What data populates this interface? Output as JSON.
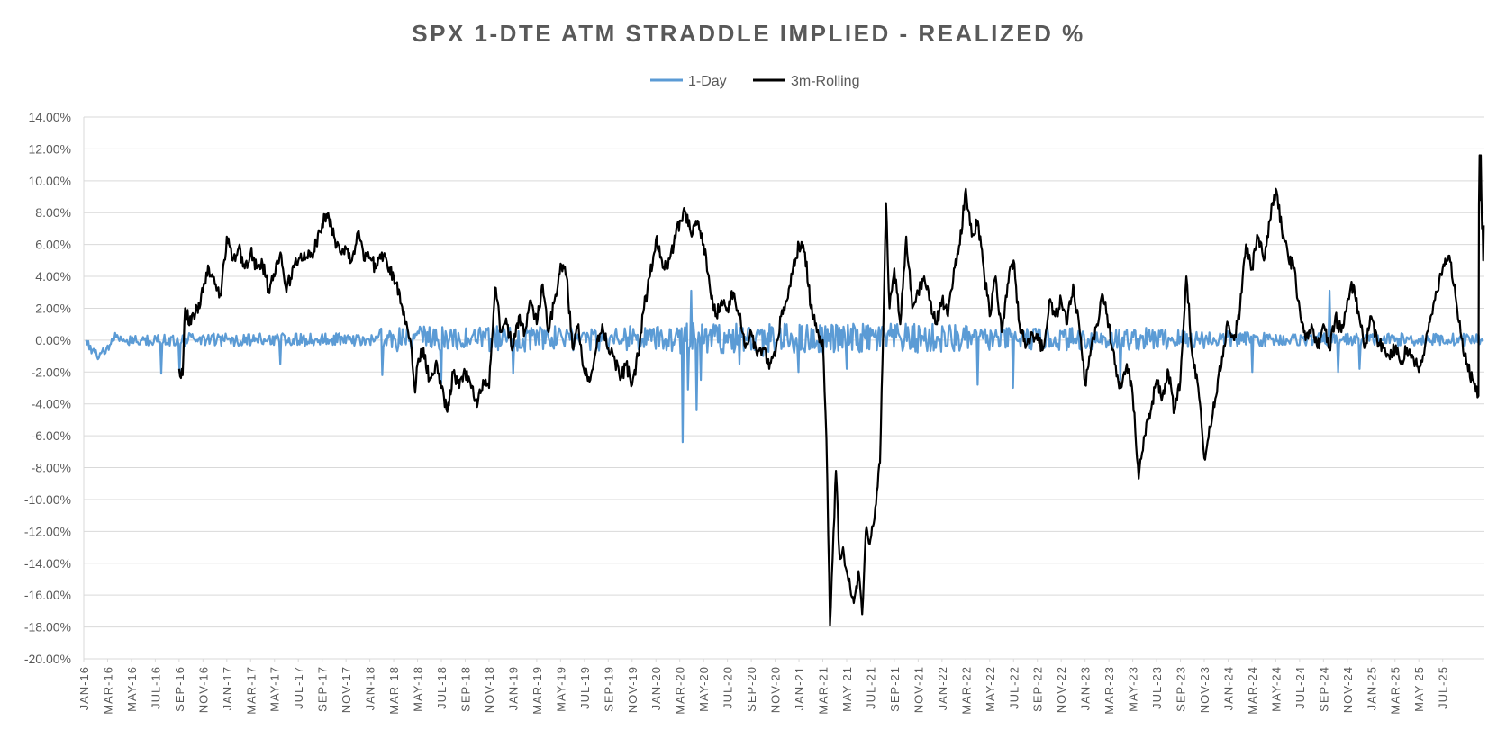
{
  "chart_data": {
    "type": "line",
    "title": "SPX 1-DTE ATM STRADDLE IMPLIED - REALIZED %",
    "xlabel": "",
    "ylabel": "",
    "ylim": [
      -20,
      14
    ],
    "y_ticks": [
      14,
      12,
      10,
      8,
      6,
      4,
      2,
      0,
      -2,
      -4,
      -6,
      -8,
      -10,
      -12,
      -14,
      -16,
      -18,
      -20
    ],
    "y_tick_labels": [
      "14.00%",
      "12.00%",
      "10.00%",
      "8.00%",
      "6.00%",
      "4.00%",
      "2.00%",
      "0.00%",
      "-2.00%",
      "-4.00%",
      "-6.00%",
      "-8.00%",
      "-10.00%",
      "-12.00%",
      "-14.00%",
      "-16.00%",
      "-18.00%",
      "-20.00%"
    ],
    "x_range_months": [
      0,
      117.5
    ],
    "x_tick_labels": [
      "JAN-16",
      "MAR-16",
      "MAY-16",
      "JUL-16",
      "SEP-16",
      "NOV-16",
      "JAN-17",
      "MAR-17",
      "MAY-17",
      "JUL-17",
      "SEP-17",
      "NOV-17",
      "JAN-18",
      "MAR-18",
      "MAY-18",
      "JUL-18",
      "SEP-18",
      "NOV-18",
      "JAN-19",
      "MAR-19",
      "MAY-19",
      "JUL-19",
      "SEP-19",
      "NOV-19",
      "JAN-20",
      "MAR-20",
      "MAY-20",
      "JUL-20",
      "SEP-20",
      "NOV-20",
      "JAN-21",
      "MAR-21",
      "MAY-21",
      "JUL-21",
      "SEP-21",
      "NOV-21",
      "JAN-22",
      "MAR-22",
      "MAY-22",
      "JUL-22",
      "SEP-22",
      "NOV-22",
      "JAN-23",
      "MAR-23",
      "MAY-23",
      "JUL-23",
      "SEP-23",
      "NOV-23",
      "JAN-24",
      "MAR-24",
      "MAY-24",
      "JUL-24",
      "SEP-24",
      "NOV-24",
      "JAN-25",
      "MAR-25",
      "MAY-25",
      "JUL-25"
    ],
    "legend": [
      "1-Day",
      "3m-Rolling"
    ],
    "legend_position": "top-center",
    "grid": true,
    "series": [
      {
        "name": "1-Day",
        "color": "#5b9bd5",
        "noise_profile": [
          [
            0,
            0.45
          ],
          [
            8,
            0.5
          ],
          [
            24,
            0.5
          ],
          [
            25,
            0.9
          ],
          [
            26,
            1.0
          ],
          [
            48,
            1.0
          ],
          [
            50,
            1.2
          ],
          [
            73,
            1.2
          ],
          [
            75,
            0.9
          ],
          [
            85,
            0.9
          ],
          [
            90,
            0.9
          ],
          [
            100,
            0.5
          ],
          [
            110,
            0.5
          ],
          [
            117.5,
            0.5
          ]
        ],
        "spikes": [
          [
            0.2,
            0.0
          ],
          [
            1.2,
            -1.2
          ],
          [
            2.2,
            -0.3
          ],
          [
            6.5,
            -2.1
          ],
          [
            8.0,
            -2.0
          ],
          [
            16.5,
            -1.5
          ],
          [
            25.0,
            -2.2
          ],
          [
            30.0,
            -2.7
          ],
          [
            36.0,
            -2.1
          ],
          [
            50.2,
            -6.4
          ],
          [
            50.7,
            -3.1
          ],
          [
            51.0,
            3.1
          ],
          [
            51.4,
            -4.4
          ],
          [
            51.8,
            -2.5
          ],
          [
            55.0,
            -1.5
          ],
          [
            57.0,
            -1.0
          ],
          [
            60.0,
            -2.0
          ],
          [
            64.0,
            -1.8
          ],
          [
            75.0,
            -2.8
          ],
          [
            78.0,
            -3.0
          ],
          [
            87.0,
            -2.5
          ],
          [
            98.0,
            -2.0
          ],
          [
            104.5,
            3.1
          ],
          [
            105.2,
            -2.0
          ],
          [
            107.0,
            -1.8
          ]
        ]
      },
      {
        "name": "3m-Rolling",
        "color": "#000000",
        "keypoints": [
          [
            8.0,
            -1.8
          ],
          [
            8.3,
            -2.2
          ],
          [
            8.5,
            2.0
          ],
          [
            9.0,
            1.0
          ],
          [
            10.0,
            3.0
          ],
          [
            10.5,
            4.5
          ],
          [
            11.0,
            3.5
          ],
          [
            11.5,
            2.8
          ],
          [
            12.0,
            6.5
          ],
          [
            12.5,
            5.0
          ],
          [
            13.0,
            5.8
          ],
          [
            13.5,
            4.5
          ],
          [
            14.0,
            5.5
          ],
          [
            14.5,
            4.5
          ],
          [
            15.0,
            4.8
          ],
          [
            15.5,
            3.2
          ],
          [
            16.0,
            4.0
          ],
          [
            16.5,
            5.5
          ],
          [
            17.0,
            3.0
          ],
          [
            17.5,
            4.5
          ],
          [
            18.0,
            5.0
          ],
          [
            18.5,
            5.5
          ],
          [
            19.0,
            5.2
          ],
          [
            19.5,
            6.0
          ],
          [
            20.0,
            7.3
          ],
          [
            20.5,
            8.0
          ],
          [
            21.0,
            6.5
          ],
          [
            21.5,
            5.5
          ],
          [
            22.0,
            5.8
          ],
          [
            22.5,
            5.0
          ],
          [
            23.0,
            6.8
          ],
          [
            23.5,
            5.0
          ],
          [
            24.0,
            5.2
          ],
          [
            24.5,
            4.5
          ],
          [
            25.0,
            5.5
          ],
          [
            25.5,
            4.5
          ],
          [
            26.0,
            4.0
          ],
          [
            26.5,
            3.0
          ],
          [
            27.0,
            1.0
          ],
          [
            27.5,
            -0.5
          ],
          [
            27.8,
            -3.3
          ],
          [
            28.0,
            -1.5
          ],
          [
            28.5,
            -0.5
          ],
          [
            29.0,
            -2.5
          ],
          [
            29.5,
            -1.5
          ],
          [
            30.0,
            -3.0
          ],
          [
            30.5,
            -4.5
          ],
          [
            31.0,
            -2.0
          ],
          [
            31.5,
            -3.0
          ],
          [
            32.0,
            -2.0
          ],
          [
            32.5,
            -3.0
          ],
          [
            33.0,
            -4.2
          ],
          [
            33.5,
            -2.5
          ],
          [
            34.0,
            -3.0
          ],
          [
            34.3,
            0.5
          ],
          [
            34.5,
            3.3
          ],
          [
            35.0,
            0.5
          ],
          [
            35.5,
            1.0
          ],
          [
            36.0,
            -0.5
          ],
          [
            36.5,
            1.5
          ],
          [
            37.0,
            0.5
          ],
          [
            37.5,
            2.5
          ],
          [
            38.0,
            1.0
          ],
          [
            38.5,
            3.5
          ],
          [
            39.0,
            0.5
          ],
          [
            39.5,
            2.5
          ],
          [
            40.0,
            4.8
          ],
          [
            40.5,
            4.0
          ],
          [
            41.0,
            -0.5
          ],
          [
            41.5,
            1.0
          ],
          [
            42.0,
            -2.0
          ],
          [
            42.5,
            -2.5
          ],
          [
            43.0,
            -0.5
          ],
          [
            43.5,
            1.0
          ],
          [
            44.0,
            -0.5
          ],
          [
            44.5,
            -1.0
          ],
          [
            45.0,
            -2.5
          ],
          [
            45.5,
            -1.5
          ],
          [
            46.0,
            -2.8
          ],
          [
            46.5,
            -1.0
          ],
          [
            47.0,
            2.0
          ],
          [
            47.5,
            4.0
          ],
          [
            48.0,
            6.3
          ],
          [
            48.5,
            5.0
          ],
          [
            49.0,
            4.5
          ],
          [
            49.5,
            6.0
          ],
          [
            50.0,
            7.5
          ],
          [
            50.5,
            8.0
          ],
          [
            51.0,
            6.5
          ],
          [
            51.5,
            7.5
          ],
          [
            52.0,
            6.0
          ],
          [
            52.5,
            3.5
          ],
          [
            53.0,
            1.5
          ],
          [
            53.5,
            2.5
          ],
          [
            54.0,
            2.0
          ],
          [
            54.5,
            3.0
          ],
          [
            55.0,
            1.5
          ],
          [
            55.5,
            -0.5
          ],
          [
            56.0,
            0.5
          ],
          [
            56.5,
            -1.0
          ],
          [
            57.0,
            -0.5
          ],
          [
            57.5,
            -1.8
          ],
          [
            58.0,
            -1.0
          ],
          [
            58.5,
            1.5
          ],
          [
            59.0,
            2.5
          ],
          [
            59.5,
            4.5
          ],
          [
            60.0,
            6.0
          ],
          [
            60.5,
            5.5
          ],
          [
            61.0,
            2.0
          ],
          [
            61.5,
            0.5
          ],
          [
            62.0,
            0.0
          ],
          [
            62.3,
            -6.2
          ],
          [
            62.6,
            -17.9
          ],
          [
            62.9,
            -12.0
          ],
          [
            63.1,
            -8.2
          ],
          [
            63.4,
            -13.5
          ],
          [
            63.7,
            -13.0
          ],
          [
            64.0,
            -14.5
          ],
          [
            64.3,
            -15.5
          ],
          [
            64.6,
            -16.5
          ],
          [
            65.0,
            -14.5
          ],
          [
            65.3,
            -17.2
          ],
          [
            65.6,
            -12.0
          ],
          [
            66.0,
            -12.5
          ],
          [
            66.4,
            -10.5
          ],
          [
            66.8,
            -7.7
          ],
          [
            67.0,
            -1.5
          ],
          [
            67.3,
            8.6
          ],
          [
            67.6,
            2.0
          ],
          [
            68.0,
            4.5
          ],
          [
            68.5,
            1.0
          ],
          [
            69.0,
            6.5
          ],
          [
            69.5,
            2.0
          ],
          [
            70.0,
            3.0
          ],
          [
            70.5,
            4.0
          ],
          [
            71.0,
            2.5
          ],
          [
            71.5,
            1.0
          ],
          [
            72.0,
            2.5
          ],
          [
            72.5,
            1.5
          ],
          [
            73.0,
            4.5
          ],
          [
            73.5,
            6.0
          ],
          [
            74.0,
            9.5
          ],
          [
            74.5,
            6.5
          ],
          [
            75.0,
            7.5
          ],
          [
            75.5,
            4.5
          ],
          [
            76.0,
            1.5
          ],
          [
            76.5,
            4.0
          ],
          [
            77.0,
            0.5
          ],
          [
            77.5,
            3.5
          ],
          [
            78.0,
            5.0
          ],
          [
            78.5,
            1.0
          ],
          [
            79.0,
            -0.5
          ],
          [
            79.5,
            0.5
          ],
          [
            80.0,
            0.0
          ],
          [
            80.5,
            -0.5
          ],
          [
            81.0,
            2.5
          ],
          [
            81.5,
            1.5
          ],
          [
            82.0,
            2.5
          ],
          [
            82.5,
            1.0
          ],
          [
            83.0,
            3.5
          ],
          [
            83.5,
            1.0
          ],
          [
            84.0,
            -2.8
          ],
          [
            84.5,
            -0.5
          ],
          [
            85.0,
            1.0
          ],
          [
            85.5,
            2.8
          ],
          [
            86.0,
            1.0
          ],
          [
            86.5,
            -1.5
          ],
          [
            87.0,
            -3.0
          ],
          [
            87.5,
            -1.5
          ],
          [
            88.0,
            -3.5
          ],
          [
            88.5,
            -8.7
          ],
          [
            89.0,
            -6.0
          ],
          [
            89.5,
            -4.5
          ],
          [
            90.0,
            -2.5
          ],
          [
            90.5,
            -3.5
          ],
          [
            91.0,
            -2.0
          ],
          [
            91.5,
            -4.5
          ],
          [
            92.0,
            -2.5
          ],
          [
            92.5,
            4.0
          ],
          [
            93.0,
            -1.0
          ],
          [
            93.5,
            -3.0
          ],
          [
            94.0,
            -7.4
          ],
          [
            94.5,
            -5.5
          ],
          [
            95.0,
            -3.5
          ],
          [
            95.5,
            -1.0
          ],
          [
            96.0,
            1.0
          ],
          [
            96.5,
            0.0
          ],
          [
            97.0,
            2.0
          ],
          [
            97.5,
            6.0
          ],
          [
            98.0,
            4.5
          ],
          [
            98.5,
            6.5
          ],
          [
            99.0,
            5.0
          ],
          [
            99.5,
            7.5
          ],
          [
            100.0,
            9.5
          ],
          [
            100.5,
            7.0
          ],
          [
            101.0,
            5.5
          ],
          [
            101.5,
            4.5
          ],
          [
            102.0,
            2.0
          ],
          [
            102.5,
            0.0
          ],
          [
            103.0,
            1.0
          ],
          [
            103.5,
            -0.5
          ],
          [
            104.0,
            1.0
          ],
          [
            104.5,
            -0.5
          ],
          [
            105.0,
            1.5
          ],
          [
            105.5,
            0.5
          ],
          [
            106.0,
            2.5
          ],
          [
            106.5,
            3.5
          ],
          [
            107.0,
            1.5
          ],
          [
            107.5,
            -0.5
          ],
          [
            108.0,
            1.5
          ],
          [
            108.5,
            0.0
          ],
          [
            109.0,
            -0.5
          ],
          [
            109.5,
            -1.0
          ],
          [
            110.0,
            -0.5
          ],
          [
            110.5,
            -1.5
          ],
          [
            111.0,
            -0.5
          ],
          [
            111.5,
            -1.0
          ],
          [
            112.0,
            -2.0
          ],
          [
            112.5,
            -0.5
          ],
          [
            113.0,
            1.5
          ],
          [
            113.5,
            3.0
          ],
          [
            114.0,
            4.5
          ],
          [
            114.5,
            5.3
          ],
          [
            115.0,
            3.5
          ],
          [
            115.5,
            0.5
          ],
          [
            116.0,
            -1.5
          ],
          [
            116.5,
            -2.5
          ],
          [
            117.0,
            -3.5
          ]
        ]
      }
    ]
  }
}
